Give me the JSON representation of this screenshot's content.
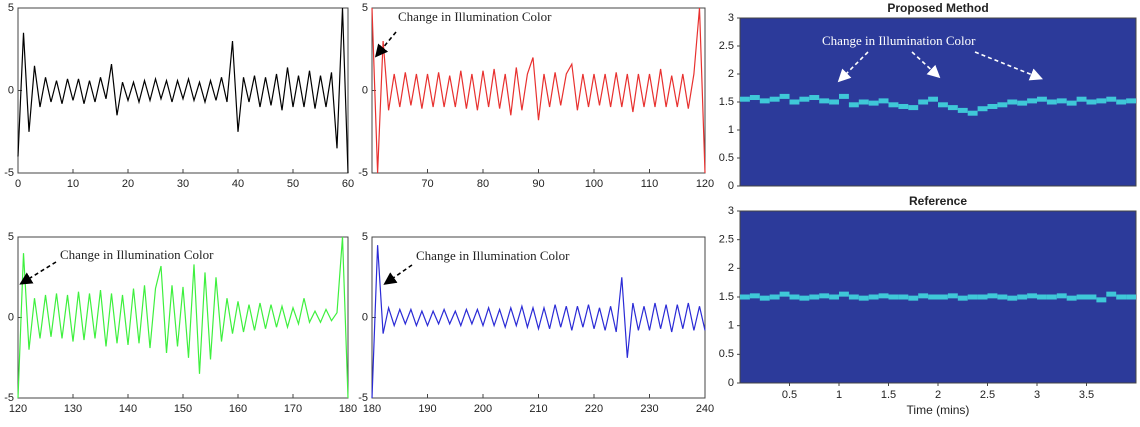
{
  "chart_data": [
    {
      "type": "line",
      "xlim": [
        0,
        60
      ],
      "ylim": [
        -5,
        5
      ],
      "xticks": [
        0,
        10,
        20,
        30,
        40,
        50,
        60
      ],
      "yticks": [
        -5,
        0,
        5
      ],
      "x": [
        0,
        1,
        2,
        3,
        4,
        5,
        6,
        7,
        8,
        9,
        10,
        11,
        12,
        13,
        14,
        15,
        16,
        17,
        18,
        19,
        20,
        21,
        22,
        23,
        24,
        25,
        26,
        27,
        28,
        29,
        30,
        31,
        32,
        33,
        34,
        35,
        36,
        37,
        38,
        39,
        40,
        41,
        42,
        43,
        44,
        45,
        46,
        47,
        48,
        49,
        50,
        51,
        52,
        53,
        54,
        55,
        56,
        57,
        58,
        59,
        60
      ],
      "series": [
        {
          "color": "#000000",
          "values": [
            -4,
            3.5,
            -2.5,
            1.5,
            -1,
            0.8,
            -0.7,
            0.6,
            -0.8,
            0.7,
            -0.6,
            0.7,
            -0.8,
            0.6,
            -0.7,
            0.8,
            -0.5,
            1.6,
            -1.5,
            0.5,
            -0.6,
            0.5,
            -0.7,
            0.6,
            -0.6,
            0.7,
            -0.5,
            0.6,
            -0.7,
            0.6,
            -0.5,
            0.7,
            -0.6,
            0.5,
            -0.7,
            0.6,
            -0.6,
            0.8,
            -0.7,
            3,
            -2.5,
            0.8,
            -0.7,
            0.9,
            -1,
            0.8,
            -0.9,
            1,
            -1.2,
            1.4,
            -1,
            0.9,
            -1,
            1.2,
            -1.1,
            0.9,
            -1,
            1.1,
            -3.5,
            5,
            -5
          ]
        }
      ]
    },
    {
      "type": "line",
      "xlim": [
        60,
        120
      ],
      "ylim": [
        -5,
        5
      ],
      "xticks": [
        70,
        80,
        90,
        100,
        110,
        120
      ],
      "yticks": [
        -5,
        0,
        5
      ],
      "annotation": "Change in Illumination Color",
      "x": [
        60,
        61,
        62,
        63,
        64,
        65,
        66,
        67,
        68,
        69,
        70,
        71,
        72,
        73,
        74,
        75,
        76,
        77,
        78,
        79,
        80,
        81,
        82,
        83,
        84,
        85,
        86,
        87,
        88,
        89,
        90,
        91,
        92,
        93,
        94,
        95,
        96,
        97,
        98,
        99,
        100,
        101,
        102,
        103,
        104,
        105,
        106,
        107,
        108,
        109,
        110,
        111,
        112,
        113,
        114,
        115,
        116,
        117,
        118,
        119,
        120
      ],
      "series": [
        {
          "color": "#e8312f",
          "values": [
            5,
            -5,
            3,
            -1.2,
            1,
            -1,
            1.1,
            -0.9,
            1,
            -1.1,
            1,
            -1,
            1.1,
            -1,
            0.9,
            -1,
            1.2,
            -1.1,
            1,
            -1.2,
            1.2,
            -1,
            1.3,
            -1.1,
            1,
            -1.5,
            1.4,
            -1.2,
            1,
            2,
            -1.8,
            1,
            -1,
            1.1,
            -0.9,
            1,
            1.6,
            -1.2,
            1,
            -1,
            1,
            -0.9,
            1,
            -1,
            1.1,
            -1,
            1,
            -1.3,
            1,
            -1,
            1,
            -1,
            1.3,
            -1,
            0.9,
            -1,
            1,
            -1.1,
            1,
            5,
            -5
          ]
        }
      ]
    },
    {
      "type": "line",
      "xlim": [
        120,
        180
      ],
      "ylim": [
        -5,
        5
      ],
      "xticks": [
        120,
        130,
        140,
        150,
        160,
        170,
        180
      ],
      "yticks": [
        -5,
        0,
        5
      ],
      "annotation": "Change in Illumination Color",
      "x": [
        120,
        121,
        122,
        123,
        124,
        125,
        126,
        127,
        128,
        129,
        130,
        131,
        132,
        133,
        134,
        135,
        136,
        137,
        138,
        139,
        140,
        141,
        142,
        143,
        144,
        145,
        146,
        147,
        148,
        149,
        150,
        151,
        152,
        153,
        154,
        155,
        156,
        157,
        158,
        159,
        160,
        161,
        162,
        163,
        164,
        165,
        166,
        167,
        168,
        169,
        170,
        171,
        172,
        173,
        174,
        175,
        176,
        177,
        178,
        179,
        180
      ],
      "series": [
        {
          "color": "#3ef03e",
          "values": [
            -5,
            4,
            -2,
            1.2,
            -1.3,
            1.4,
            -1.2,
            1.5,
            -1.3,
            1.4,
            -1.5,
            1.6,
            -1.4,
            1.5,
            -1.3,
            1.7,
            -1.8,
            1.5,
            -1.6,
            1.4,
            -1.7,
            1.8,
            -1.6,
            2,
            -1.9,
            1.8,
            3.2,
            -2.2,
            2,
            -1.8,
            1.9,
            -2.5,
            3.3,
            -3.5,
            2.8,
            -2.6,
            2.5,
            -1.5,
            1.2,
            -1,
            1,
            -0.9,
            0.8,
            -0.8,
            0.9,
            -0.7,
            0.8,
            -0.6,
            0.7,
            -0.6,
            0.6,
            -0.4,
            1.2,
            -0.3,
            0.4,
            -0.3,
            0.5,
            -0.2,
            0.3,
            5,
            -5
          ]
        }
      ]
    },
    {
      "type": "line",
      "xlim": [
        180,
        240
      ],
      "ylim": [
        -5,
        5
      ],
      "xticks": [
        180,
        190,
        200,
        210,
        220,
        230,
        240
      ],
      "yticks": [
        -5,
        0,
        5
      ],
      "annotation": "Change in Illumination Color",
      "x": [
        180,
        181,
        182,
        183,
        184,
        185,
        186,
        187,
        188,
        189,
        190,
        191,
        192,
        193,
        194,
        195,
        196,
        197,
        198,
        199,
        200,
        201,
        202,
        203,
        204,
        205,
        206,
        207,
        208,
        209,
        210,
        211,
        212,
        213,
        214,
        215,
        216,
        217,
        218,
        219,
        220,
        221,
        222,
        223,
        224,
        225,
        226,
        227,
        228,
        229,
        230,
        231,
        232,
        233,
        234,
        235,
        236,
        237,
        238,
        239,
        240
      ],
      "series": [
        {
          "color": "#2b2bd6",
          "values": [
            -5,
            4.5,
            -1,
            0.6,
            -0.5,
            0.5,
            -0.4,
            0.5,
            -0.5,
            0.4,
            -0.5,
            0.4,
            -0.4,
            0.5,
            -0.4,
            0.4,
            -0.5,
            0.5,
            -0.4,
            0.5,
            -0.5,
            0.6,
            -0.5,
            0.5,
            -0.6,
            0.6,
            -0.5,
            0.7,
            -0.6,
            0.6,
            -0.7,
            0.6,
            -0.7,
            0.8,
            -0.6,
            0.7,
            -0.8,
            0.7,
            -0.6,
            0.8,
            -0.7,
            0.6,
            -0.8,
            0.7,
            -0.9,
            2.5,
            -2.5,
            0.9,
            -0.8,
            0.7,
            -0.8,
            0.9,
            -0.7,
            0.8,
            -0.9,
            0.8,
            -0.7,
            0.9,
            -0.8,
            0.7,
            -0.8
          ]
        }
      ]
    },
    {
      "type": "heatmap",
      "title": "Proposed Method",
      "annotation": "Change in Illumination Color",
      "xlim": [
        0,
        4
      ],
      "ylim": [
        0,
        3
      ],
      "yticks": [
        0,
        0.5,
        1,
        1.5,
        2,
        2.5,
        3
      ],
      "background": "#2c3a9a",
      "x": [
        0,
        0.1,
        0.2,
        0.3,
        0.4,
        0.5,
        0.6,
        0.7,
        0.8,
        0.9,
        1,
        1.1,
        1.2,
        1.3,
        1.4,
        1.5,
        1.6,
        1.7,
        1.8,
        1.9,
        2,
        2.1,
        2.2,
        2.3,
        2.4,
        2.5,
        2.6,
        2.7,
        2.8,
        2.9,
        3,
        3.1,
        3.2,
        3.3,
        3.4,
        3.5,
        3.6,
        3.7,
        3.8,
        3.9
      ],
      "series": [
        {
          "color": "#3fc8d8",
          "values": [
            1.55,
            1.58,
            1.52,
            1.55,
            1.6,
            1.5,
            1.55,
            1.58,
            1.52,
            1.5,
            1.6,
            1.45,
            1.5,
            1.48,
            1.52,
            1.45,
            1.42,
            1.4,
            1.5,
            1.55,
            1.45,
            1.4,
            1.35,
            1.3,
            1.38,
            1.42,
            1.45,
            1.5,
            1.48,
            1.52,
            1.55,
            1.5,
            1.52,
            1.48,
            1.55,
            1.5,
            1.52,
            1.55,
            1.5,
            1.52
          ]
        }
      ]
    },
    {
      "type": "heatmap",
      "title": "Reference",
      "xlabel": "Time (mins)",
      "xlim": [
        0,
        4
      ],
      "ylim": [
        0,
        3
      ],
      "xticks": [
        0.5,
        1,
        1.5,
        2,
        2.5,
        3,
        3.5
      ],
      "yticks": [
        0,
        0.5,
        1,
        1.5,
        2,
        2.5,
        3
      ],
      "background": "#2c3a9a",
      "x": [
        0,
        0.1,
        0.2,
        0.3,
        0.4,
        0.5,
        0.6,
        0.7,
        0.8,
        0.9,
        1,
        1.1,
        1.2,
        1.3,
        1.4,
        1.5,
        1.6,
        1.7,
        1.8,
        1.9,
        2,
        2.1,
        2.2,
        2.3,
        2.4,
        2.5,
        2.6,
        2.7,
        2.8,
        2.9,
        3,
        3.1,
        3.2,
        3.3,
        3.4,
        3.5,
        3.6,
        3.7,
        3.8,
        3.9
      ],
      "series": [
        {
          "color": "#3fc8d8",
          "values": [
            1.5,
            1.52,
            1.48,
            1.5,
            1.55,
            1.5,
            1.48,
            1.5,
            1.52,
            1.5,
            1.55,
            1.5,
            1.48,
            1.5,
            1.52,
            1.5,
            1.5,
            1.48,
            1.52,
            1.5,
            1.5,
            1.52,
            1.48,
            1.5,
            1.5,
            1.52,
            1.5,
            1.48,
            1.5,
            1.52,
            1.5,
            1.5,
            1.52,
            1.48,
            1.5,
            1.5,
            1.45,
            1.55,
            1.5,
            1.5
          ]
        }
      ]
    }
  ]
}
